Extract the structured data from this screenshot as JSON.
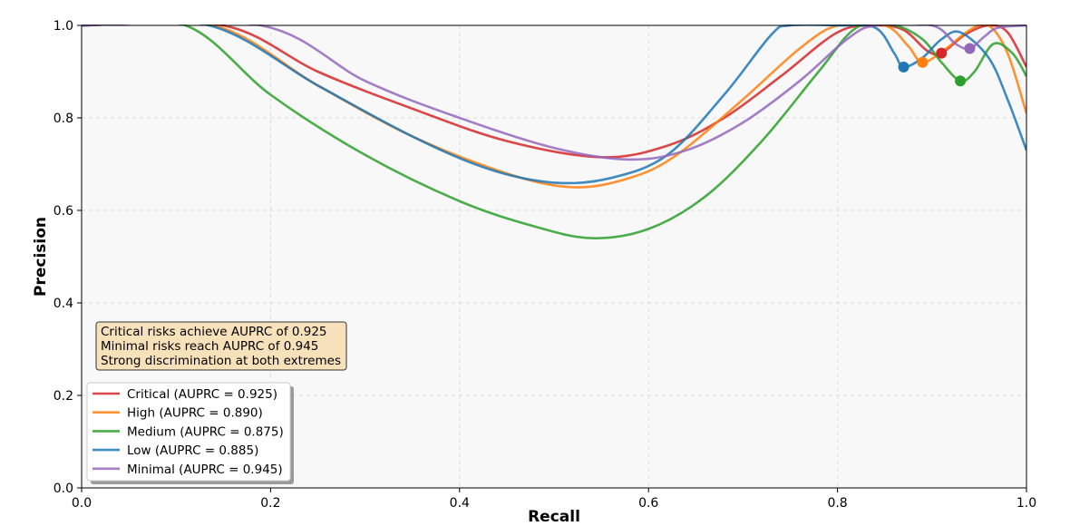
{
  "chart_data": {
    "type": "line",
    "title": "",
    "xlabel": "Recall",
    "ylabel": "Precision",
    "xlim": [
      0.0,
      1.0
    ],
    "ylim": [
      0.0,
      1.0
    ],
    "xticks": [
      "0.0",
      "0.2",
      "0.4",
      "0.6",
      "0.8",
      "1.0"
    ],
    "yticks": [
      "0.0",
      "0.2",
      "0.4",
      "0.6",
      "0.8",
      "1.0"
    ],
    "grid": true,
    "legend_position": "lower-left",
    "annotation": {
      "lines": [
        "Critical risks achieve AUPRC of 0.925",
        "Minimal risks reach AUPRC of 0.945",
        "Strong discrimination at both extremes"
      ],
      "position": "lower-left"
    },
    "series": [
      {
        "name": "Critical (AUPRC = 0.925)",
        "color": "#d62728",
        "points": [
          [
            0.0,
            1.0
          ],
          [
            0.15,
            1.0
          ],
          [
            0.25,
            0.9
          ],
          [
            0.35,
            0.82
          ],
          [
            0.45,
            0.75
          ],
          [
            0.55,
            0.715
          ],
          [
            0.62,
            0.74
          ],
          [
            0.68,
            0.8
          ],
          [
            0.74,
            0.89
          ],
          [
            0.8,
            0.985
          ],
          [
            0.84,
            1.0
          ],
          [
            0.87,
            0.99
          ],
          [
            0.895,
            0.945
          ],
          [
            0.91,
            0.94
          ],
          [
            0.935,
            0.98
          ],
          [
            0.96,
            1.0
          ],
          [
            0.98,
            0.985
          ],
          [
            1.0,
            0.91
          ]
        ],
        "marker": [
          0.91,
          0.94
        ]
      },
      {
        "name": "High (AUPRC = 0.890)",
        "color": "#ff7f0e",
        "points": [
          [
            0.0,
            1.0
          ],
          [
            0.14,
            1.0
          ],
          [
            0.25,
            0.87
          ],
          [
            0.35,
            0.76
          ],
          [
            0.45,
            0.68
          ],
          [
            0.52,
            0.65
          ],
          [
            0.58,
            0.67
          ],
          [
            0.63,
            0.72
          ],
          [
            0.7,
            0.84
          ],
          [
            0.76,
            0.95
          ],
          [
            0.8,
            1.0
          ],
          [
            0.85,
            1.0
          ],
          [
            0.875,
            0.955
          ],
          [
            0.89,
            0.92
          ],
          [
            0.915,
            0.95
          ],
          [
            0.94,
            0.99
          ],
          [
            0.96,
            1.0
          ],
          [
            0.98,
            0.94
          ],
          [
            1.0,
            0.81
          ]
        ],
        "marker": [
          0.89,
          0.92
        ]
      },
      {
        "name": "Medium (AUPRC = 0.875)",
        "color": "#2ca02c",
        "points": [
          [
            0.0,
            1.0
          ],
          [
            0.11,
            1.0
          ],
          [
            0.2,
            0.85
          ],
          [
            0.3,
            0.72
          ],
          [
            0.4,
            0.62
          ],
          [
            0.48,
            0.565
          ],
          [
            0.54,
            0.54
          ],
          [
            0.6,
            0.56
          ],
          [
            0.66,
            0.63
          ],
          [
            0.72,
            0.75
          ],
          [
            0.78,
            0.9
          ],
          [
            0.82,
            0.995
          ],
          [
            0.86,
            1.0
          ],
          [
            0.89,
            0.97
          ],
          [
            0.91,
            0.92
          ],
          [
            0.93,
            0.88
          ],
          [
            0.945,
            0.9
          ],
          [
            0.965,
            0.96
          ],
          [
            0.985,
            0.94
          ],
          [
            1.0,
            0.89
          ]
        ],
        "marker": [
          0.93,
          0.88
        ]
      },
      {
        "name": "Low (AUPRC = 0.885)",
        "color": "#1f77b4",
        "points": [
          [
            0.0,
            1.0
          ],
          [
            0.135,
            1.0
          ],
          [
            0.25,
            0.87
          ],
          [
            0.35,
            0.76
          ],
          [
            0.43,
            0.69
          ],
          [
            0.5,
            0.66
          ],
          [
            0.56,
            0.67
          ],
          [
            0.62,
            0.72
          ],
          [
            0.68,
            0.85
          ],
          [
            0.73,
            0.98
          ],
          [
            0.75,
            1.0
          ],
          [
            0.8,
            1.0
          ],
          [
            0.84,
            0.995
          ],
          [
            0.86,
            0.94
          ],
          [
            0.87,
            0.91
          ],
          [
            0.89,
            0.93
          ],
          [
            0.91,
            0.97
          ],
          [
            0.93,
            0.985
          ],
          [
            0.96,
            0.93
          ],
          [
            0.98,
            0.84
          ],
          [
            1.0,
            0.73
          ]
        ],
        "marker": [
          0.87,
          0.91
        ]
      },
      {
        "name": "Minimal (AUPRC = 0.945)",
        "color": "#9467bd",
        "points": [
          [
            0.0,
            1.0
          ],
          [
            0.19,
            1.0
          ],
          [
            0.3,
            0.88
          ],
          [
            0.4,
            0.8
          ],
          [
            0.5,
            0.735
          ],
          [
            0.58,
            0.71
          ],
          [
            0.64,
            0.73
          ],
          [
            0.7,
            0.79
          ],
          [
            0.76,
            0.88
          ],
          [
            0.81,
            0.97
          ],
          [
            0.84,
            1.0
          ],
          [
            0.9,
            1.0
          ],
          [
            0.925,
            0.96
          ],
          [
            0.94,
            0.95
          ],
          [
            0.955,
            0.975
          ],
          [
            0.97,
            0.995
          ],
          [
            1.0,
            1.0
          ]
        ],
        "marker": [
          0.94,
          0.95
        ]
      }
    ]
  }
}
